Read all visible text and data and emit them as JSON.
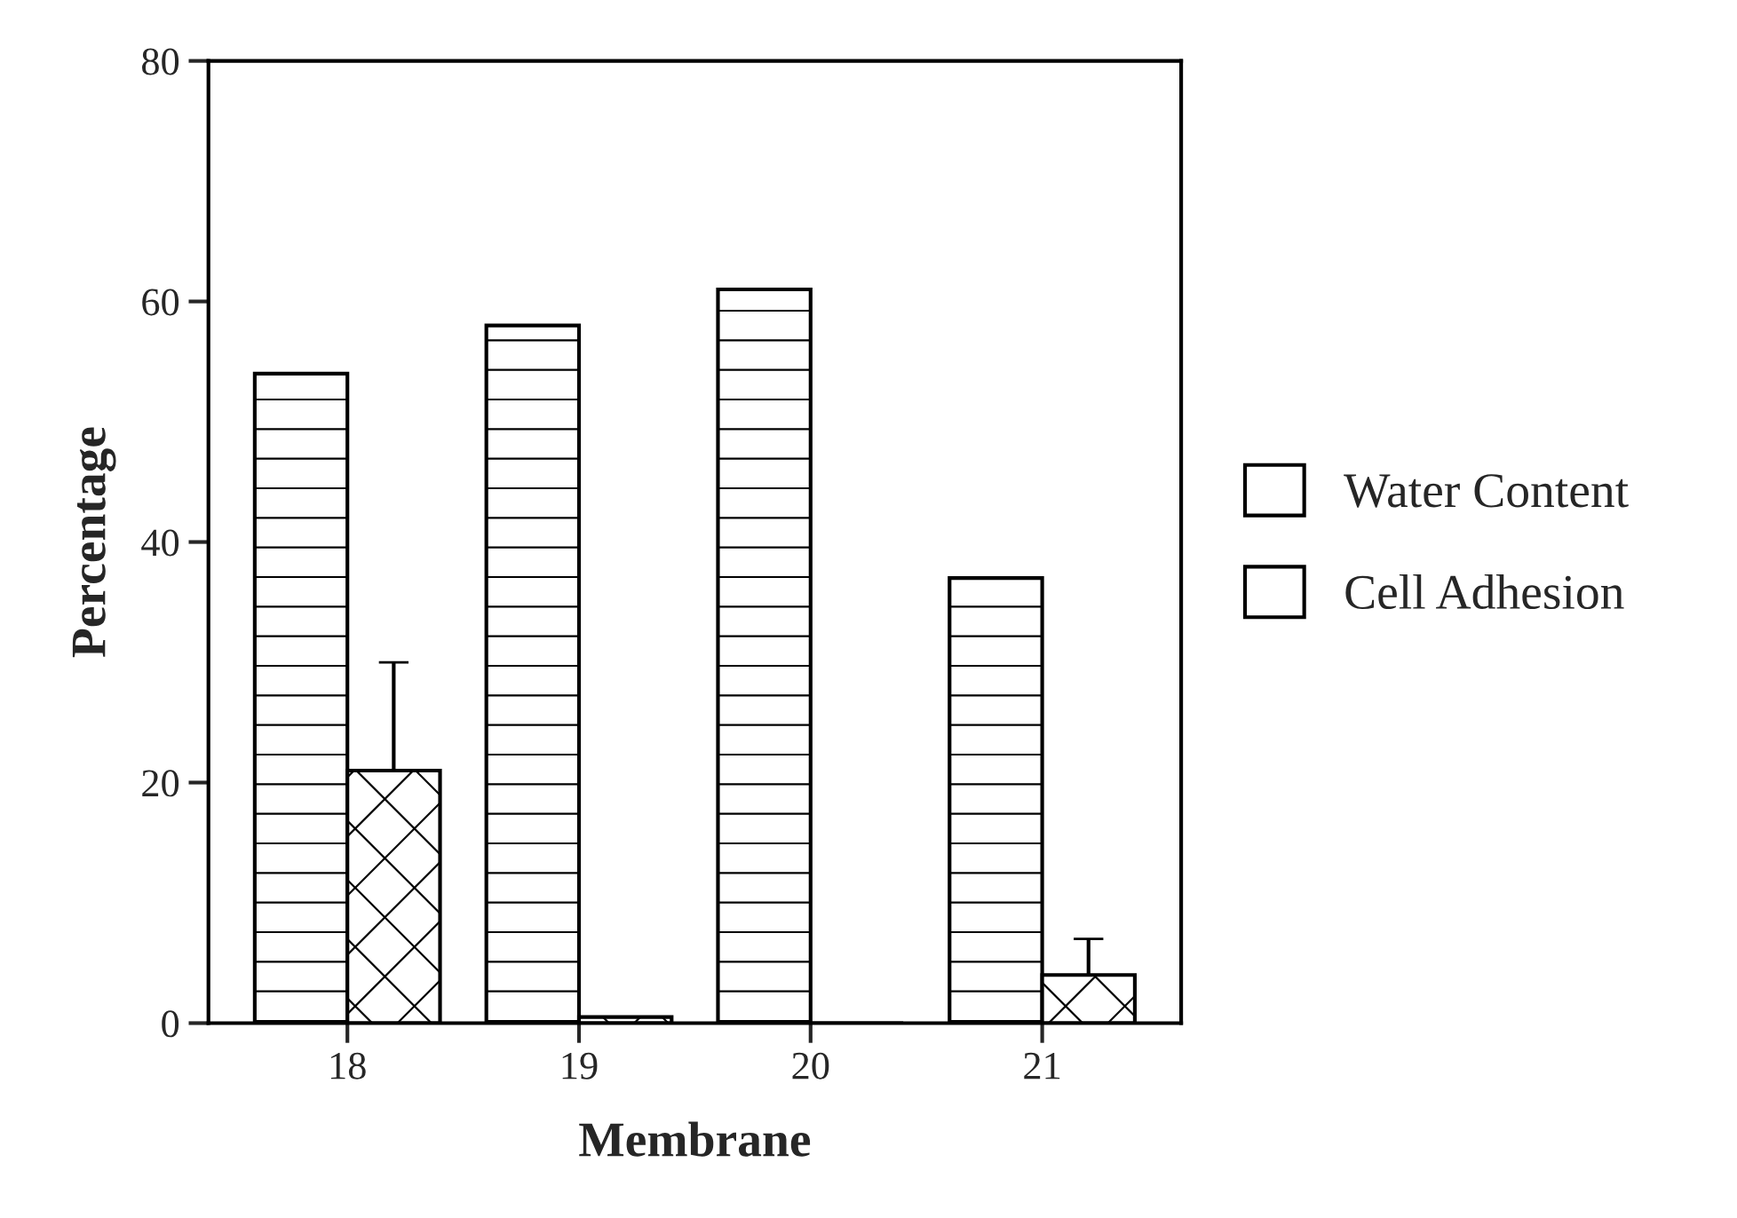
{
  "chart_data": {
    "type": "bar",
    "xlabel": "Membrane",
    "ylabel": "Percentage",
    "categories": [
      "18",
      "19",
      "20",
      "21"
    ],
    "series": [
      {
        "name": "Water Content",
        "color": "#ffffff",
        "values": [
          54,
          58,
          61,
          37
        ]
      },
      {
        "name": "Cell Adhesion",
        "color": "#ffffff",
        "values": [
          21,
          0.5,
          0,
          4
        ],
        "errors": [
          9,
          null,
          null,
          3
        ]
      }
    ],
    "ylim": [
      0,
      80
    ],
    "yticks": [
      0,
      20,
      40,
      60,
      80
    ],
    "grid": false,
    "legend": "right"
  }
}
